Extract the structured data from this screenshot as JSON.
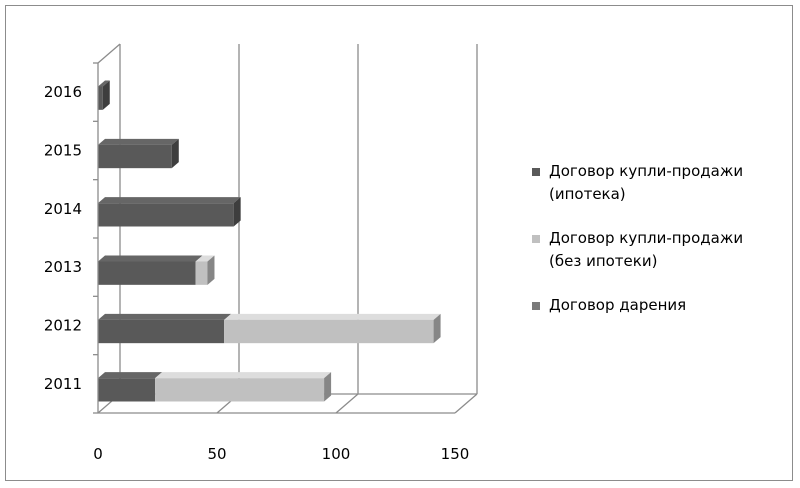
{
  "chart_data": {
    "type": "bar",
    "orientation": "horizontal",
    "stacked": true,
    "style": "3d",
    "categories": [
      "2011",
      "2012",
      "2013",
      "2014",
      "2015",
      "2016"
    ],
    "series": [
      {
        "name": "Договор купли-продажи (ипотека)",
        "values": [
          24,
          53,
          41,
          57,
          31,
          2
        ],
        "color": "#595959"
      },
      {
        "name": "Договор купли-продажи (без ипотеки)",
        "values": [
          71,
          88,
          5,
          0,
          0,
          0
        ],
        "color": "#c0c0c0"
      },
      {
        "name": "Договор дарения",
        "values": [
          0,
          0,
          0,
          0,
          0,
          0
        ],
        "color": "#7a7a7a"
      }
    ],
    "xlim": [
      0,
      150
    ],
    "xticks": [
      "0",
      "50",
      "100",
      "150"
    ],
    "grid": true,
    "legend_position": "right"
  },
  "legend": {
    "items": [
      {
        "line1": "Договор купли-продажи",
        "line2": "(ипотека)",
        "color": "#595959"
      },
      {
        "line1": "Договор купли-продажи",
        "line2": "(без ипотеки)",
        "color": "#c0c0c0"
      },
      {
        "line1": "Договор дарения",
        "line2": "",
        "color": "#7a7a7a"
      }
    ]
  }
}
